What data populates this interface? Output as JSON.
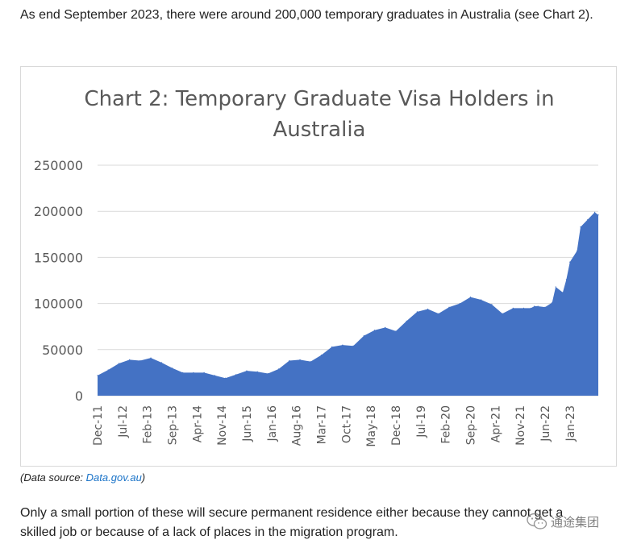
{
  "article": {
    "intro_text": "As end September 2023, there were around 200,000 temporary graduates in Australia (see Chart 2).",
    "source_prefix": "(Data source: ",
    "source_link": "Data.gov.au",
    "source_suffix": ")",
    "outro_text": "Only a small portion of these will secure permanent residence either because they cannot get a skilled job or because of a lack of places in the migration program."
  },
  "watermark": {
    "text": "通途集团",
    "icon": "wechat-icon"
  },
  "colors": {
    "area_fill": "#4472c4",
    "gridline": "#d9d9d9",
    "title": "#595959",
    "tick_label": "#595959"
  },
  "chart_data": {
    "type": "area",
    "title_lines": [
      "Chart 2: Temporary Graduate Visa Holders in",
      "Australia"
    ],
    "xlabel": "",
    "ylabel": "",
    "ylim": [
      0,
      250000
    ],
    "yticks": [
      0,
      50000,
      100000,
      150000,
      200000,
      250000
    ],
    "grid": true,
    "legend": "none",
    "x_tick_labels": [
      "Dec-11",
      "Jul-12",
      "Feb-13",
      "Sep-13",
      "Apr-14",
      "Nov-14",
      "Jun-15",
      "Jan-16",
      "Aug-16",
      "Mar-17",
      "Oct-17",
      "May-18",
      "Dec-18",
      "Jul-19",
      "Feb-20",
      "Sep-20",
      "Apr-21",
      "Nov-21",
      "Jun-22",
      "Jan-23"
    ],
    "series": [
      {
        "x": [
          "Dec-11",
          "Mar-12",
          "Jun-12",
          "Sep-12",
          "Dec-12",
          "Mar-13",
          "Jun-13",
          "Sep-13",
          "Dec-13",
          "Mar-14",
          "Jun-14",
          "Sep-14",
          "Dec-14",
          "Mar-15",
          "Jun-15",
          "Sep-15",
          "Dec-15",
          "Mar-16",
          "Jun-16",
          "Sep-16",
          "Dec-16",
          "Mar-17",
          "Jun-17",
          "Sep-17",
          "Dec-17",
          "Mar-18",
          "Jun-18",
          "Sep-18",
          "Dec-18",
          "Mar-19",
          "Jun-19",
          "Sep-19",
          "Dec-19",
          "Mar-20",
          "Jun-20",
          "Sep-20",
          "Dec-20",
          "Mar-21",
          "Jun-21",
          "Sep-21",
          "Dec-21",
          "Feb-22",
          "Mar-22",
          "Apr-22",
          "Jun-22",
          "Aug-22",
          "Sep-22",
          "Nov-22",
          "Dec-22",
          "Jan-23",
          "Mar-23",
          "Apr-23",
          "Jun-23",
          "Aug-23",
          "Sep-23"
        ],
        "values": [
          22000,
          28000,
          35000,
          39000,
          38000,
          41000,
          36000,
          30000,
          25000,
          25000,
          25000,
          22000,
          19000,
          23000,
          27000,
          26000,
          24000,
          29000,
          38000,
          39000,
          37000,
          44000,
          53000,
          55000,
          54000,
          65000,
          71000,
          74000,
          70000,
          81000,
          91000,
          94000,
          89000,
          96000,
          100000,
          107000,
          104000,
          99000,
          89000,
          95000,
          95000,
          95000,
          97000,
          97000,
          96000,
          101000,
          118000,
          112000,
          126000,
          145000,
          157000,
          183000,
          191000,
          199000,
          196000
        ]
      }
    ]
  }
}
